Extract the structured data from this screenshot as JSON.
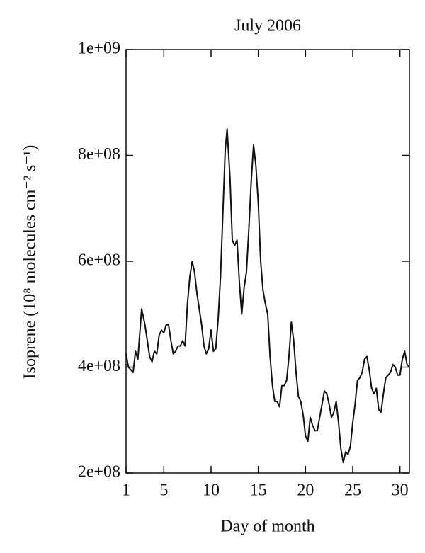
{
  "chart_data": {
    "type": "line",
    "title": "July 2006",
    "xlabel": "Day of month",
    "ylabel": "Isoprene (10⁸ molecules cm⁻² s⁻¹)",
    "xlim": [
      1,
      31
    ],
    "xticks": [
      1,
      5,
      10,
      15,
      20,
      25,
      30
    ],
    "ylim": [
      200000000.0,
      1000000000.0
    ],
    "yticks": [
      {
        "value": 200000000.0,
        "label": "2e+08"
      },
      {
        "value": 400000000.0,
        "label": "4e+08"
      },
      {
        "value": 600000000.0,
        "label": "6e+08"
      },
      {
        "value": 800000000.0,
        "label": "8e+08"
      },
      {
        "value": 1000000000.0,
        "label": "1e+09"
      }
    ],
    "color": "#111111",
    "x": [
      1.0,
      1.25,
      1.5,
      1.75,
      2.0,
      2.25,
      2.5,
      2.65,
      3.0,
      3.25,
      3.5,
      3.75,
      4.0,
      4.25,
      4.5,
      4.75,
      5.0,
      5.25,
      5.5,
      5.75,
      6.0,
      6.25,
      6.5,
      6.75,
      7.0,
      7.25,
      7.5,
      7.75,
      8.0,
      8.25,
      8.5,
      8.75,
      9.0,
      9.25,
      9.5,
      9.75,
      10.0,
      10.25,
      10.5,
      10.75,
      11.0,
      11.25,
      11.5,
      11.7,
      12.0,
      12.25,
      12.5,
      12.75,
      13.0,
      13.25,
      13.5,
      13.75,
      14.0,
      14.25,
      14.5,
      14.75,
      15.0,
      15.25,
      15.5,
      15.75,
      16.0,
      16.25,
      16.5,
      16.75,
      17.0,
      17.25,
      17.5,
      17.75,
      18.0,
      18.25,
      18.5,
      18.75,
      19.0,
      19.25,
      19.5,
      19.75,
      20.0,
      20.25,
      20.5,
      20.75,
      21.0,
      21.25,
      21.5,
      21.75,
      22.0,
      22.25,
      22.5,
      22.75,
      23.0,
      23.25,
      23.5,
      23.75,
      24.0,
      24.25,
      24.5,
      24.75,
      25.0,
      25.25,
      25.5,
      25.75,
      26.0,
      26.25,
      26.5,
      26.75,
      27.0,
      27.25,
      27.5,
      27.75,
      28.0,
      28.25,
      28.5,
      28.75,
      29.0,
      29.25,
      29.5,
      29.75,
      30.0,
      30.25,
      30.5,
      30.75,
      31.0
    ],
    "values": [
      425000000.0,
      400000000.0,
      395000000.0,
      390000000.0,
      430000000.0,
      415000000.0,
      475000000.0,
      510000000.0,
      480000000.0,
      450000000.0,
      420000000.0,
      410000000.0,
      430000000.0,
      425000000.0,
      460000000.0,
      470000000.0,
      465000000.0,
      480000000.0,
      480000000.0,
      450000000.0,
      425000000.0,
      430000000.0,
      440000000.0,
      440000000.0,
      450000000.0,
      440000000.0,
      520000000.0,
      570000000.0,
      600000000.0,
      580000000.0,
      540000000.0,
      510000000.0,
      480000000.0,
      440000000.0,
      425000000.0,
      435000000.0,
      470000000.0,
      430000000.0,
      435000000.0,
      490000000.0,
      570000000.0,
      690000000.0,
      810000000.0,
      850000000.0,
      760000000.0,
      640000000.0,
      630000000.0,
      640000000.0,
      560000000.0,
      500000000.0,
      550000000.0,
      580000000.0,
      660000000.0,
      750000000.0,
      820000000.0,
      780000000.0,
      710000000.0,
      600000000.0,
      545000000.0,
      520000000.0,
      500000000.0,
      420000000.0,
      365000000.0,
      335000000.0,
      335000000.0,
      325000000.0,
      365000000.0,
      365000000.0,
      375000000.0,
      420000000.0,
      485000000.0,
      450000000.0,
      390000000.0,
      345000000.0,
      335000000.0,
      310000000.0,
      270000000.0,
      260000000.0,
      305000000.0,
      290000000.0,
      280000000.0,
      280000000.0,
      305000000.0,
      330000000.0,
      355000000.0,
      350000000.0,
      330000000.0,
      305000000.0,
      315000000.0,
      335000000.0,
      295000000.0,
      245000000.0,
      220000000.0,
      240000000.0,
      235000000.0,
      250000000.0,
      295000000.0,
      330000000.0,
      375000000.0,
      380000000.0,
      390000000.0,
      415000000.0,
      420000000.0,
      395000000.0,
      360000000.0,
      350000000.0,
      360000000.0,
      320000000.0,
      315000000.0,
      350000000.0,
      380000000.0,
      385000000.0,
      390000000.0,
      405000000.0,
      400000000.0,
      385000000.0,
      385000000.0,
      415000000.0,
      430000000.0,
      405000000.0,
      400000000.0
    ]
  }
}
